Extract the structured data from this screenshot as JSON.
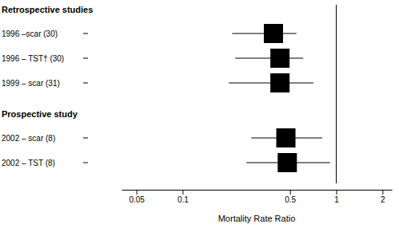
{
  "chart_data": {
    "type": "forest",
    "x_label": "Mortality Rate Ratio",
    "log": "x",
    "xlim": [
      0.04,
      2.3
    ],
    "xticks": [
      0.05,
      0.1,
      0.5,
      1,
      2
    ],
    "reference": 1,
    "color": "#000000",
    "marker": "square",
    "groups": [
      {
        "name": "Retrospective studies",
        "categories": [
          "1996 –scar (30)",
          "1996 – TST† (30)",
          "1999 – scar (31)"
        ],
        "values": [
          0.39,
          0.43,
          0.43
        ],
        "ci_lower": [
          0.21,
          0.22,
          0.2
        ],
        "ci_upper": [
          0.55,
          0.61,
          0.71
        ]
      },
      {
        "name": "Prospective study",
        "categories": [
          "2002 – scar (8)",
          "2002 – TST (8)"
        ],
        "values": [
          0.47,
          0.48
        ],
        "ci_lower": [
          0.28,
          0.26
        ],
        "ci_upper": [
          0.81,
          0.91
        ]
      }
    ]
  }
}
